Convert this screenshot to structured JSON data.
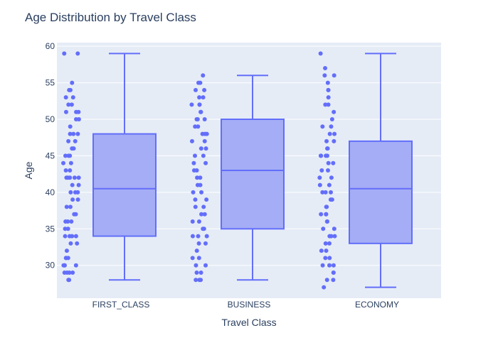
{
  "chart_data": {
    "type": "box",
    "title": "Age Distribution by Travel Class",
    "xlabel": "Travel Class",
    "ylabel": "Age",
    "ylim": [
      25.5,
      60.5
    ],
    "yticks": [
      30,
      35,
      40,
      45,
      50,
      55,
      60
    ],
    "categories": [
      "FIRST_CLASS",
      "BUSINESS",
      "ECONOMY"
    ],
    "boxpoints": "all",
    "colors": {
      "box_fill": "#a4adf5",
      "box_line": "#636efa",
      "points": "#636efa",
      "plot_bg": "#e5ecf6",
      "grid": "#ffffff",
      "text": "#2a3f5f"
    },
    "boxes": [
      {
        "category": "FIRST_CLASS",
        "min": 28,
        "q1": 34,
        "median": 40.5,
        "q3": 48,
        "max": 59,
        "points": [
          59,
          59,
          55,
          54,
          54,
          53,
          53,
          52,
          52,
          51,
          51,
          51,
          50,
          50,
          49,
          48,
          48,
          48,
          47,
          47,
          46,
          46,
          45,
          45,
          45,
          44,
          44,
          43,
          43,
          42,
          42,
          42,
          42,
          42,
          41,
          41,
          40,
          40,
          40,
          39,
          39,
          38,
          38,
          37,
          37,
          36,
          36,
          36,
          35,
          35,
          34,
          34,
          34,
          34,
          33,
          33,
          32,
          31,
          31,
          31,
          30,
          30,
          30,
          30,
          29,
          29,
          29,
          29,
          28,
          28
        ]
      },
      {
        "category": "BUSINESS",
        "min": 28,
        "q1": 35,
        "median": 43,
        "q3": 50,
        "max": 56,
        "points": [
          56,
          55,
          55,
          54,
          54,
          53,
          53,
          52,
          52,
          52,
          51,
          51,
          50,
          50,
          50,
          49,
          49,
          48,
          48,
          48,
          47,
          47,
          46,
          46,
          45,
          45,
          44,
          44,
          43,
          43,
          42,
          42,
          41,
          41,
          40,
          40,
          39,
          39,
          38,
          38,
          37,
          37,
          36,
          36,
          35,
          35,
          34,
          34,
          34,
          33,
          33,
          32,
          31,
          31,
          30,
          30,
          29,
          29,
          28,
          28,
          28
        ]
      },
      {
        "category": "ECONOMY",
        "min": 27,
        "q1": 33,
        "median": 40.5,
        "q3": 47,
        "max": 59,
        "points": [
          59,
          57,
          56,
          56,
          55,
          54,
          54,
          53,
          52,
          52,
          51,
          50,
          49,
          49,
          48,
          48,
          47,
          47,
          46,
          46,
          45,
          45,
          45,
          45,
          44,
          44,
          43,
          43,
          42,
          42,
          41,
          41,
          40,
          40,
          40,
          39,
          39,
          38,
          38,
          37,
          37,
          37,
          36,
          36,
          35,
          35,
          34,
          34,
          34,
          33,
          33,
          32,
          32,
          31,
          31,
          30,
          30,
          30,
          29,
          29,
          28,
          28,
          27
        ]
      }
    ]
  }
}
